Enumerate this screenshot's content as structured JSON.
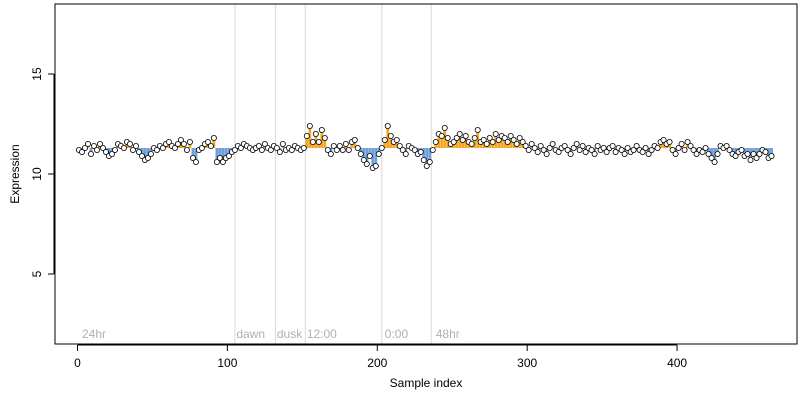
{
  "chart_data": {
    "type": "scatter",
    "xlabel": "Sample index",
    "ylabel": "Expression",
    "xlim": [
      -15,
      480
    ],
    "ylim": [
      1.5,
      18.5
    ],
    "xticks": [
      0,
      100,
      200,
      300,
      400
    ],
    "yticks": [
      5,
      10,
      15
    ],
    "baseline": 11.3,
    "colors": {
      "above_bar": "#f5a623",
      "below_bar": "#6f9fd8",
      "point_fill": "#ffffff",
      "point_stroke": "#000000",
      "vline": "#d9d9d9",
      "annotation": "#b0b0b0",
      "axis": "#000000"
    },
    "annotations": [
      {
        "label": "24hr",
        "x": 3
      },
      {
        "label": "dawn",
        "x": 106
      },
      {
        "label": "dusk",
        "x": 133
      },
      {
        "label": "12:00",
        "x": 153
      },
      {
        "label": "0:00",
        "x": 205
      },
      {
        "label": "48hr",
        "x": 239
      }
    ],
    "vlines": [
      105,
      132,
      152,
      203,
      236
    ],
    "points": [
      [
        1,
        11.2
      ],
      [
        3,
        11.1
      ],
      [
        5,
        11.3
      ],
      [
        7,
        11.5
      ],
      [
        9,
        11.0
      ],
      [
        11,
        11.4
      ],
      [
        13,
        11.2
      ],
      [
        15,
        11.5
      ],
      [
        17,
        11.3
      ],
      [
        19,
        11.1
      ],
      [
        21,
        10.9
      ],
      [
        23,
        11.0
      ],
      [
        25,
        11.2
      ],
      [
        27,
        11.5
      ],
      [
        29,
        11.4
      ],
      [
        31,
        11.3
      ],
      [
        33,
        11.6
      ],
      [
        35,
        11.5
      ],
      [
        37,
        11.2
      ],
      [
        39,
        11.4
      ],
      [
        41,
        11.1
      ],
      [
        43,
        10.9
      ],
      [
        45,
        10.7
      ],
      [
        47,
        10.8
      ],
      [
        49,
        11.0
      ],
      [
        51,
        11.3
      ],
      [
        53,
        11.2
      ],
      [
        55,
        11.4
      ],
      [
        57,
        11.3
      ],
      [
        59,
        11.5
      ],
      [
        61,
        11.6
      ],
      [
        63,
        11.4
      ],
      [
        65,
        11.3
      ],
      [
        67,
        11.5
      ],
      [
        69,
        11.7
      ],
      [
        71,
        11.5
      ],
      [
        73,
        11.2
      ],
      [
        75,
        11.6
      ],
      [
        77,
        10.8
      ],
      [
        79,
        10.6
      ],
      [
        81,
        11.2
      ],
      [
        83,
        11.3
      ],
      [
        85,
        11.5
      ],
      [
        87,
        11.6
      ],
      [
        89,
        11.4
      ],
      [
        91,
        11.8
      ],
      [
        93,
        10.6
      ],
      [
        95,
        10.8
      ],
      [
        97,
        10.6
      ],
      [
        99,
        10.8
      ],
      [
        101,
        10.9
      ],
      [
        103,
        11.1
      ],
      [
        105,
        11.2
      ],
      [
        107,
        11.4
      ],
      [
        109,
        11.3
      ],
      [
        111,
        11.5
      ],
      [
        113,
        11.4
      ],
      [
        115,
        11.3
      ],
      [
        117,
        11.2
      ],
      [
        119,
        11.3
      ],
      [
        121,
        11.4
      ],
      [
        123,
        11.2
      ],
      [
        125,
        11.5
      ],
      [
        127,
        11.3
      ],
      [
        129,
        11.2
      ],
      [
        131,
        11.4
      ],
      [
        133,
        11.3
      ],
      [
        135,
        11.1
      ],
      [
        137,
        11.5
      ],
      [
        139,
        11.2
      ],
      [
        141,
        11.3
      ],
      [
        143,
        11.2
      ],
      [
        145,
        11.4
      ],
      [
        147,
        11.3
      ],
      [
        149,
        11.2
      ],
      [
        151,
        11.3
      ],
      [
        153,
        11.9
      ],
      [
        155,
        12.4
      ],
      [
        157,
        11.6
      ],
      [
        159,
        12.0
      ],
      [
        161,
        11.6
      ],
      [
        163,
        12.2
      ],
      [
        165,
        11.8
      ],
      [
        167,
        11.2
      ],
      [
        169,
        11.0
      ],
      [
        171,
        11.4
      ],
      [
        173,
        11.2
      ],
      [
        175,
        11.4
      ],
      [
        177,
        11.2
      ],
      [
        179,
        11.5
      ],
      [
        181,
        11.2
      ],
      [
        183,
        11.6
      ],
      [
        185,
        11.7
      ],
      [
        187,
        11.3
      ],
      [
        189,
        11.0
      ],
      [
        191,
        10.7
      ],
      [
        193,
        10.5
      ],
      [
        195,
        10.9
      ],
      [
        197,
        10.3
      ],
      [
        199,
        10.4
      ],
      [
        201,
        11.0
      ],
      [
        203,
        11.3
      ],
      [
        205,
        11.7
      ],
      [
        207,
        12.4
      ],
      [
        209,
        11.9
      ],
      [
        211,
        11.6
      ],
      [
        213,
        11.7
      ],
      [
        215,
        11.4
      ],
      [
        217,
        11.2
      ],
      [
        219,
        11.0
      ],
      [
        221,
        11.4
      ],
      [
        223,
        11.3
      ],
      [
        225,
        11.2
      ],
      [
        227,
        11.0
      ],
      [
        229,
        11.1
      ],
      [
        231,
        10.7
      ],
      [
        233,
        10.4
      ],
      [
        235,
        10.6
      ],
      [
        237,
        11.2
      ],
      [
        239,
        11.6
      ],
      [
        241,
        12.0
      ],
      [
        243,
        11.9
      ],
      [
        245,
        12.3
      ],
      [
        247,
        11.8
      ],
      [
        249,
        11.5
      ],
      [
        251,
        11.6
      ],
      [
        253,
        11.8
      ],
      [
        255,
        12.0
      ],
      [
        257,
        11.7
      ],
      [
        259,
        11.9
      ],
      [
        261,
        11.6
      ],
      [
        263,
        11.5
      ],
      [
        265,
        11.8
      ],
      [
        267,
        12.2
      ],
      [
        269,
        11.6
      ],
      [
        271,
        11.7
      ],
      [
        273,
        11.5
      ],
      [
        275,
        11.8
      ],
      [
        277,
        11.6
      ],
      [
        279,
        12.0
      ],
      [
        281,
        11.7
      ],
      [
        283,
        11.9
      ],
      [
        285,
        11.8
      ],
      [
        287,
        11.6
      ],
      [
        289,
        11.9
      ],
      [
        291,
        11.7
      ],
      [
        293,
        11.5
      ],
      [
        295,
        11.8
      ],
      [
        297,
        11.6
      ],
      [
        299,
        11.4
      ],
      [
        301,
        11.2
      ],
      [
        303,
        11.5
      ],
      [
        305,
        11.3
      ],
      [
        307,
        11.1
      ],
      [
        309,
        11.4
      ],
      [
        311,
        11.2
      ],
      [
        313,
        11.0
      ],
      [
        315,
        11.3
      ],
      [
        317,
        11.5
      ],
      [
        319,
        11.2
      ],
      [
        321,
        11.1
      ],
      [
        323,
        11.3
      ],
      [
        325,
        11.4
      ],
      [
        327,
        11.2
      ],
      [
        329,
        11.0
      ],
      [
        331,
        11.3
      ],
      [
        333,
        11.5
      ],
      [
        335,
        11.2
      ],
      [
        337,
        11.4
      ],
      [
        339,
        11.1
      ],
      [
        341,
        11.3
      ],
      [
        343,
        11.2
      ],
      [
        345,
        11.0
      ],
      [
        347,
        11.4
      ],
      [
        349,
        11.2
      ],
      [
        351,
        11.3
      ],
      [
        353,
        11.1
      ],
      [
        355,
        11.3
      ],
      [
        357,
        11.4
      ],
      [
        359,
        11.1
      ],
      [
        361,
        11.3
      ],
      [
        363,
        11.2
      ],
      [
        365,
        11.0
      ],
      [
        367,
        11.3
      ],
      [
        369,
        11.1
      ],
      [
        371,
        11.2
      ],
      [
        373,
        11.4
      ],
      [
        375,
        11.2
      ],
      [
        377,
        11.1
      ],
      [
        379,
        11.3
      ],
      [
        381,
        11.0
      ],
      [
        383,
        11.2
      ],
      [
        385,
        11.4
      ],
      [
        387,
        11.3
      ],
      [
        389,
        11.6
      ],
      [
        391,
        11.7
      ],
      [
        393,
        11.5
      ],
      [
        395,
        11.6
      ],
      [
        397,
        11.2
      ],
      [
        399,
        11.0
      ],
      [
        401,
        11.3
      ],
      [
        403,
        11.5
      ],
      [
        405,
        11.2
      ],
      [
        407,
        11.6
      ],
      [
        409,
        11.4
      ],
      [
        411,
        11.2
      ],
      [
        413,
        11.0
      ],
      [
        415,
        11.2
      ],
      [
        417,
        11.1
      ],
      [
        419,
        11.3
      ],
      [
        421,
        11.0
      ],
      [
        423,
        10.8
      ],
      [
        425,
        10.6
      ],
      [
        427,
        11.0
      ],
      [
        429,
        11.4
      ],
      [
        431,
        11.3
      ],
      [
        433,
        11.4
      ],
      [
        435,
        11.2
      ],
      [
        437,
        11.0
      ],
      [
        439,
        10.9
      ],
      [
        441,
        11.1
      ],
      [
        443,
        11.2
      ],
      [
        445,
        10.9
      ],
      [
        447,
        11.0
      ],
      [
        449,
        10.7
      ],
      [
        451,
        11.0
      ],
      [
        453,
        10.8
      ],
      [
        455,
        11.0
      ],
      [
        457,
        11.2
      ],
      [
        459,
        11.1
      ],
      [
        461,
        10.8
      ],
      [
        463,
        10.9
      ]
    ]
  }
}
